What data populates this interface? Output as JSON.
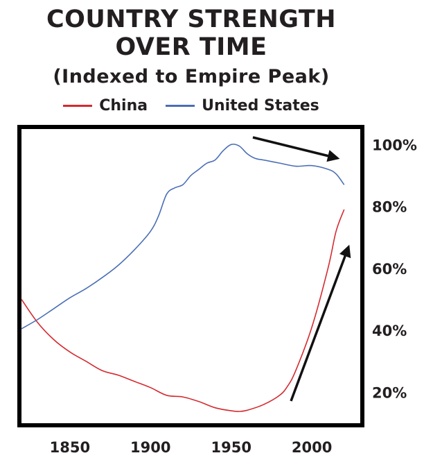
{
  "chart_data": {
    "type": "line",
    "title": "COUNTRY STRENGTH",
    "title_line2": "OVER TIME",
    "subtitle": "(Indexed to Empire Peak)",
    "xlabel": "",
    "ylabel": "",
    "xlim": [
      1820,
      2030
    ],
    "ylim": [
      10,
      105
    ],
    "xticks": [
      1850,
      1900,
      1950,
      2000
    ],
    "yticks": [
      {
        "value": 20,
        "label": "20%"
      },
      {
        "value": 40,
        "label": "40%"
      },
      {
        "value": 60,
        "label": "60%"
      },
      {
        "value": 80,
        "label": "80%"
      },
      {
        "value": 100,
        "label": "100%"
      }
    ],
    "grid": false,
    "legend_position": "top",
    "series": [
      {
        "name": "China",
        "color": "#d42a2f",
        "points": [
          [
            1820,
            50
          ],
          [
            1830,
            42.5
          ],
          [
            1840,
            37
          ],
          [
            1850,
            33
          ],
          [
            1860,
            30
          ],
          [
            1870,
            27
          ],
          [
            1880,
            25.5
          ],
          [
            1890,
            23.5
          ],
          [
            1900,
            21.5
          ],
          [
            1910,
            19
          ],
          [
            1920,
            18.5
          ],
          [
            1930,
            17
          ],
          [
            1940,
            15
          ],
          [
            1950,
            14
          ],
          [
            1955,
            13.8
          ],
          [
            1960,
            14.2
          ],
          [
            1970,
            16
          ],
          [
            1980,
            19
          ],
          [
            1985,
            22
          ],
          [
            1990,
            27
          ],
          [
            2000,
            41
          ],
          [
            2010,
            60
          ],
          [
            2015,
            72
          ],
          [
            2020,
            79
          ]
        ]
      },
      {
        "name": "United States",
        "color": "#4a6eb5",
        "points": [
          [
            1820,
            40.5
          ],
          [
            1830,
            43.5
          ],
          [
            1840,
            47
          ],
          [
            1850,
            50.5
          ],
          [
            1860,
            53.5
          ],
          [
            1870,
            57
          ],
          [
            1880,
            61
          ],
          [
            1890,
            66
          ],
          [
            1900,
            72
          ],
          [
            1905,
            77
          ],
          [
            1910,
            84
          ],
          [
            1915,
            86
          ],
          [
            1920,
            87
          ],
          [
            1925,
            90
          ],
          [
            1930,
            92
          ],
          [
            1935,
            94
          ],
          [
            1940,
            95
          ],
          [
            1945,
            98
          ],
          [
            1950,
            100
          ],
          [
            1955,
            99.5
          ],
          [
            1960,
            97
          ],
          [
            1965,
            95.5
          ],
          [
            1970,
            95
          ],
          [
            1980,
            94
          ],
          [
            1990,
            93
          ],
          [
            2000,
            93.2
          ],
          [
            2010,
            92
          ],
          [
            2015,
            90.5
          ],
          [
            2020,
            87
          ]
        ]
      }
    ]
  }
}
